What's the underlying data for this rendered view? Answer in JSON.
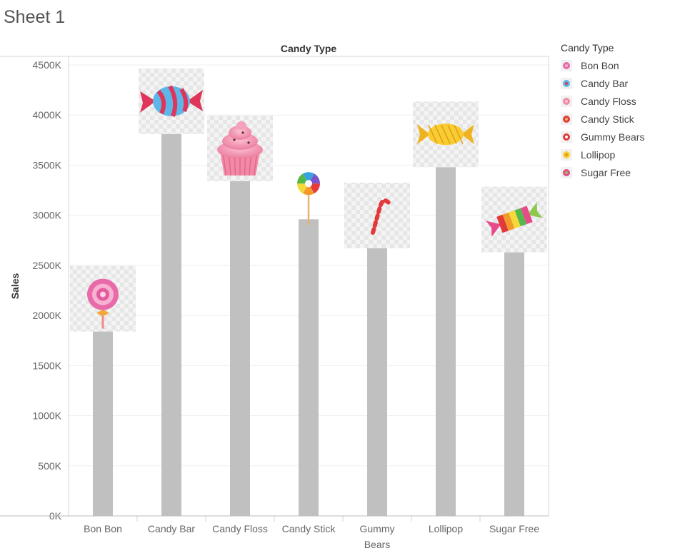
{
  "sheet": {
    "title": "Sheet 1"
  },
  "chart_data": {
    "type": "bar",
    "title": "",
    "column_header": "Candy Type",
    "xlabel": "",
    "ylabel": "Sales",
    "ylim": [
      0,
      4500000
    ],
    "yticks": [
      0,
      500000,
      1000000,
      1500000,
      2000000,
      2500000,
      3000000,
      3500000,
      4000000,
      4500000
    ],
    "ytick_labels": [
      "0K",
      "500K",
      "1000K",
      "1500K",
      "2000K",
      "2500K",
      "3000K",
      "3500K",
      "4000K",
      "4500K"
    ],
    "categories": [
      "Bon Bon",
      "Candy Bar",
      "Candy Floss",
      "Candy Stick",
      "Gummy Bears",
      "Lollipop",
      "Sugar Free"
    ],
    "category_label_lines": [
      [
        "Bon Bon"
      ],
      [
        "Candy Bar"
      ],
      [
        "Candy Floss"
      ],
      [
        "Candy Stick"
      ],
      [
        "Gummy",
        "Bears"
      ],
      [
        "Lollipop"
      ],
      [
        "Sugar Free"
      ]
    ],
    "values": [
      1840000,
      3810000,
      3340000,
      2960000,
      2670000,
      3480000,
      2630000
    ],
    "bar_color": "#c0c0c0",
    "grid": true,
    "legend_placement": "right",
    "legend": {
      "title": "Candy Type",
      "items": [
        "Bon Bon",
        "Candy Bar",
        "Candy Floss",
        "Candy Stick",
        "Gummy Bears",
        "Lollipop",
        "Sugar Free"
      ]
    },
    "mark_icons": [
      "lollipop-swirl-icon",
      "candy-wrapped-blue-icon",
      "cupcake-icon",
      "lollipop-rainbow-icon",
      "candy-cane-icon",
      "candy-wrapped-yellow-icon",
      "candy-wrapped-rainbow-icon"
    ]
  }
}
